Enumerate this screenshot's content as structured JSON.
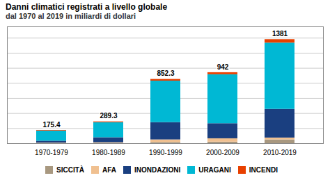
{
  "chart_data": {
    "type": "bar",
    "title": "Danni climatici registrati a livello globale",
    "subtitle": "dal 1970 al 2019 in miliardi di dollari",
    "categories": [
      "1970-1979",
      "1980-1989",
      "1990-1999",
      "2000-2009",
      "2010-2019"
    ],
    "series": [
      {
        "name": "SICCITÀ",
        "color": "#a89880",
        "values": [
          4,
          8,
          15,
          20,
          50
        ]
      },
      {
        "name": "AFA",
        "color": "#f0c090",
        "values": [
          4,
          6,
          35,
          45,
          25
        ]
      },
      {
        "name": "INONDAZIONI",
        "color": "#1a3f80",
        "values": [
          25,
          65,
          230,
          200,
          380
        ]
      },
      {
        "name": "URAGANI",
        "color": "#00b8d4",
        "values": [
          135,
          200,
          550,
          650,
          880
        ]
      },
      {
        "name": "INCENDI",
        "color": "#e84000",
        "values": [
          7.4,
          10.3,
          22.3,
          27,
          46
        ]
      }
    ],
    "totals": [
      175.4,
      289.3,
      852.3,
      942,
      1381
    ],
    "stacked": true,
    "ylim": [
      0,
      1550
    ],
    "yticks": [
      200,
      400,
      600,
      800,
      1000,
      1200,
      1400
    ],
    "grid": true,
    "tick_labels": "x",
    "legend": "bottom"
  }
}
